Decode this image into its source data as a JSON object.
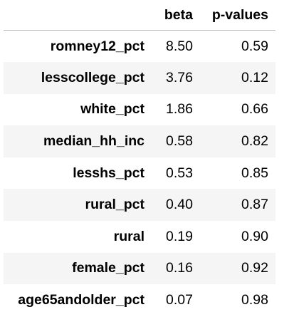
{
  "table": {
    "columns": [
      "beta",
      "p-values"
    ],
    "rows": [
      {
        "index": "romney12_pct",
        "beta": "8.50",
        "p_value": "0.59"
      },
      {
        "index": "lesscollege_pct",
        "beta": "3.76",
        "p_value": "0.12"
      },
      {
        "index": "white_pct",
        "beta": "1.86",
        "p_value": "0.66"
      },
      {
        "index": "median_hh_inc",
        "beta": "0.58",
        "p_value": "0.82"
      },
      {
        "index": "lesshs_pct",
        "beta": "0.53",
        "p_value": "0.85"
      },
      {
        "index": "rural_pct",
        "beta": "0.40",
        "p_value": "0.87"
      },
      {
        "index": "rural",
        "beta": "0.19",
        "p_value": "0.90"
      },
      {
        "index": "female_pct",
        "beta": "0.16",
        "p_value": "0.92"
      },
      {
        "index": "age65andolder_pct",
        "beta": "0.07",
        "p_value": "0.98"
      }
    ]
  },
  "colors": {
    "stripe": "#f5f5f5",
    "header_rule": "#bdbdbd",
    "text": "#000000"
  }
}
